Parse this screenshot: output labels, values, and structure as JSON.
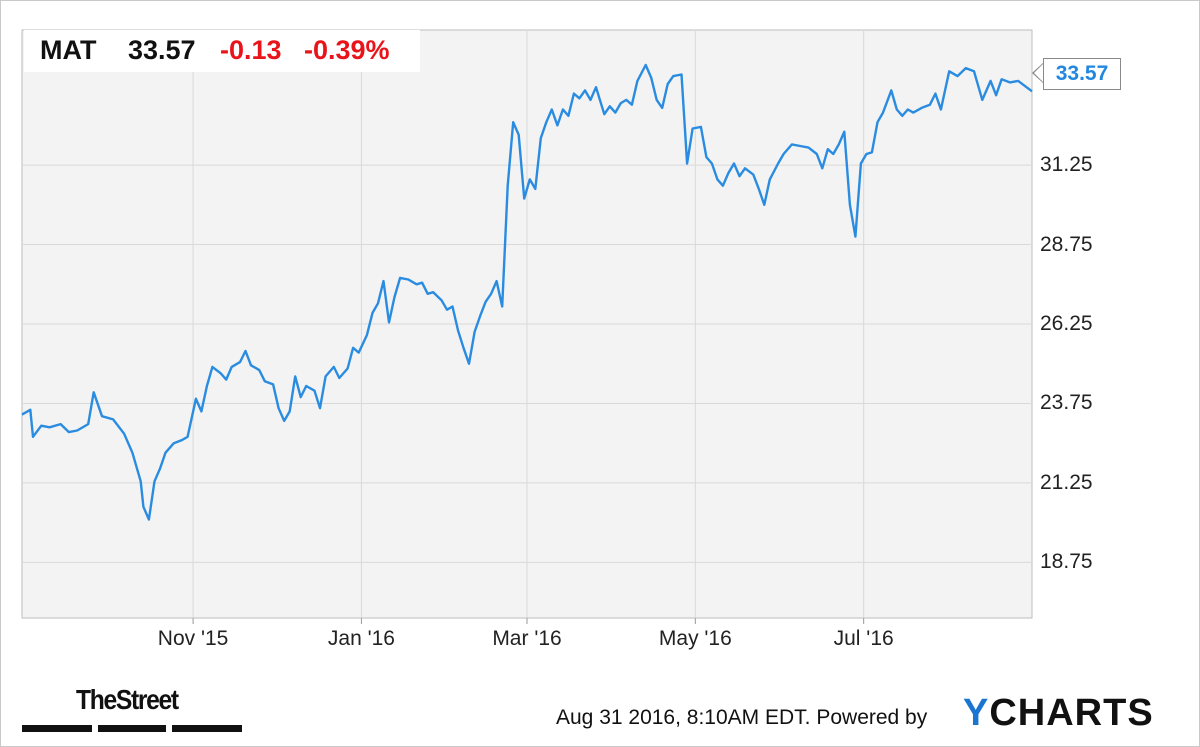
{
  "header": {
    "ticker": "MAT",
    "price": "33.57",
    "change": "-0.13",
    "change_pct": "-0.39%"
  },
  "last_value_label": "33.57",
  "footer": {
    "timestamp": "Aug 31 2016, 8:10AM EDT.",
    "powered_by": "Powered by",
    "brand_y": "Y",
    "brand_rest": "CHARTS",
    "publisher": "TheStreet"
  },
  "colors": {
    "line": "#2a8ce0",
    "negative": "#e8141a",
    "plot_background": "#f3f3f3",
    "grid": "#d9d9d9"
  },
  "chart_data": {
    "type": "line",
    "title": "",
    "xlabel": "",
    "ylabel": "",
    "ylim": [
      17.0,
      35.5
    ],
    "y_ticks": [
      "18.75",
      "21.25",
      "23.75",
      "26.25",
      "28.75",
      "31.25"
    ],
    "y_tick_values": [
      18.75,
      21.25,
      23.75,
      26.25,
      28.75,
      31.25
    ],
    "x_ticks": [
      "Nov '15",
      "Jan '16",
      "Mar '16",
      "May '16",
      "Jul '16"
    ],
    "x_tick_dates": [
      "2015-11-01",
      "2016-01-01",
      "2016-03-01",
      "2016-05-01",
      "2016-07-01"
    ],
    "x_range": [
      "2015-08-31",
      "2016-08-31"
    ],
    "grid": true,
    "series": [
      {
        "values": [
          [
            "2015-08-31",
            23.4
          ],
          [
            "2015-09-03",
            23.55
          ],
          [
            "2015-09-04",
            22.7
          ],
          [
            "2015-09-07",
            23.05
          ],
          [
            "2015-09-10",
            23.0
          ],
          [
            "2015-09-14",
            23.1
          ],
          [
            "2015-09-17",
            22.85
          ],
          [
            "2015-09-20",
            22.9
          ],
          [
            "2015-09-24",
            23.1
          ],
          [
            "2015-09-26",
            24.1
          ],
          [
            "2015-09-29",
            23.35
          ],
          [
            "2015-10-03",
            23.25
          ],
          [
            "2015-10-07",
            22.8
          ],
          [
            "2015-10-10",
            22.2
          ],
          [
            "2015-10-13",
            21.3
          ],
          [
            "2015-10-14",
            20.5
          ],
          [
            "2015-10-16",
            20.1
          ],
          [
            "2015-10-18",
            21.3
          ],
          [
            "2015-10-20",
            21.7
          ],
          [
            "2015-10-22",
            22.2
          ],
          [
            "2015-10-25",
            22.5
          ],
          [
            "2015-10-28",
            22.6
          ],
          [
            "2015-10-30",
            22.7
          ],
          [
            "2015-11-02",
            23.9
          ],
          [
            "2015-11-04",
            23.5
          ],
          [
            "2015-11-06",
            24.3
          ],
          [
            "2015-11-08",
            24.9
          ],
          [
            "2015-11-11",
            24.7
          ],
          [
            "2015-11-13",
            24.5
          ],
          [
            "2015-11-15",
            24.9
          ],
          [
            "2015-11-18",
            25.05
          ],
          [
            "2015-11-20",
            25.4
          ],
          [
            "2015-11-22",
            24.95
          ],
          [
            "2015-11-25",
            24.8
          ],
          [
            "2015-11-27",
            24.45
          ],
          [
            "2015-11-30",
            24.35
          ],
          [
            "2015-12-02",
            23.6
          ],
          [
            "2015-12-04",
            23.2
          ],
          [
            "2015-12-06",
            23.5
          ],
          [
            "2015-12-08",
            24.6
          ],
          [
            "2015-12-10",
            23.95
          ],
          [
            "2015-12-12",
            24.3
          ],
          [
            "2015-12-15",
            24.15
          ],
          [
            "2015-12-17",
            23.6
          ],
          [
            "2015-12-19",
            24.6
          ],
          [
            "2015-12-22",
            24.9
          ],
          [
            "2015-12-24",
            24.55
          ],
          [
            "2015-12-27",
            24.85
          ],
          [
            "2015-12-29",
            25.5
          ],
          [
            "2015-12-31",
            25.35
          ],
          [
            "2016-01-03",
            25.9
          ],
          [
            "2016-01-05",
            26.6
          ],
          [
            "2016-01-07",
            26.9
          ],
          [
            "2016-01-09",
            27.6
          ],
          [
            "2016-01-11",
            26.3
          ],
          [
            "2016-01-13",
            27.1
          ],
          [
            "2016-01-15",
            27.7
          ],
          [
            "2016-01-18",
            27.65
          ],
          [
            "2016-01-21",
            27.5
          ],
          [
            "2016-01-23",
            27.55
          ],
          [
            "2016-01-25",
            27.2
          ],
          [
            "2016-01-27",
            27.25
          ],
          [
            "2016-01-30",
            27.0
          ],
          [
            "2016-02-01",
            26.7
          ],
          [
            "2016-02-03",
            26.8
          ],
          [
            "2016-02-05",
            26.05
          ],
          [
            "2016-02-07",
            25.5
          ],
          [
            "2016-02-09",
            25.0
          ],
          [
            "2016-02-11",
            26.0
          ],
          [
            "2016-02-13",
            26.5
          ],
          [
            "2016-02-15",
            26.95
          ],
          [
            "2016-02-17",
            27.2
          ],
          [
            "2016-02-19",
            27.6
          ],
          [
            "2016-02-21",
            26.8
          ],
          [
            "2016-02-23",
            30.6
          ],
          [
            "2016-02-25",
            32.6
          ],
          [
            "2016-02-27",
            32.2
          ],
          [
            "2016-02-29",
            30.2
          ],
          [
            "2016-03-02",
            30.8
          ],
          [
            "2016-03-04",
            30.5
          ],
          [
            "2016-03-06",
            32.1
          ],
          [
            "2016-03-08",
            32.6
          ],
          [
            "2016-03-10",
            33.0
          ],
          [
            "2016-03-12",
            32.5
          ],
          [
            "2016-03-14",
            33.0
          ],
          [
            "2016-03-16",
            32.8
          ],
          [
            "2016-03-18",
            33.5
          ],
          [
            "2016-03-20",
            33.35
          ],
          [
            "2016-03-22",
            33.6
          ],
          [
            "2016-03-24",
            33.3
          ],
          [
            "2016-03-26",
            33.7
          ],
          [
            "2016-03-29",
            32.85
          ],
          [
            "2016-03-31",
            33.1
          ],
          [
            "2016-04-02",
            32.9
          ],
          [
            "2016-04-04",
            33.2
          ],
          [
            "2016-04-06",
            33.3
          ],
          [
            "2016-04-08",
            33.15
          ],
          [
            "2016-04-10",
            33.9
          ],
          [
            "2016-04-13",
            34.4
          ],
          [
            "2016-04-15",
            34.0
          ],
          [
            "2016-04-17",
            33.3
          ],
          [
            "2016-04-19",
            33.05
          ],
          [
            "2016-04-21",
            33.8
          ],
          [
            "2016-04-23",
            34.05
          ],
          [
            "2016-04-26",
            34.1
          ],
          [
            "2016-04-28",
            31.3
          ],
          [
            "2016-04-30",
            32.4
          ],
          [
            "2016-05-03",
            32.45
          ],
          [
            "2016-05-05",
            31.5
          ],
          [
            "2016-05-07",
            31.3
          ],
          [
            "2016-05-09",
            30.8
          ],
          [
            "2016-05-11",
            30.6
          ],
          [
            "2016-05-13",
            31.0
          ],
          [
            "2016-05-15",
            31.3
          ],
          [
            "2016-05-17",
            30.9
          ],
          [
            "2016-05-19",
            31.15
          ],
          [
            "2016-05-22",
            30.95
          ],
          [
            "2016-05-24",
            30.5
          ],
          [
            "2016-05-26",
            30.0
          ],
          [
            "2016-05-28",
            30.8
          ],
          [
            "2016-05-31",
            31.3
          ],
          [
            "2016-06-02",
            31.6
          ],
          [
            "2016-06-05",
            31.9
          ],
          [
            "2016-06-08",
            31.85
          ],
          [
            "2016-06-11",
            31.8
          ],
          [
            "2016-06-14",
            31.6
          ],
          [
            "2016-06-16",
            31.15
          ],
          [
            "2016-06-18",
            31.75
          ],
          [
            "2016-06-20",
            31.6
          ],
          [
            "2016-06-22",
            31.9
          ],
          [
            "2016-06-24",
            32.3
          ],
          [
            "2016-06-26",
            30.0
          ],
          [
            "2016-06-28",
            29.0
          ],
          [
            "2016-06-30",
            31.3
          ],
          [
            "2016-07-02",
            31.6
          ],
          [
            "2016-07-04",
            31.65
          ],
          [
            "2016-07-06",
            32.6
          ],
          [
            "2016-07-08",
            32.9
          ],
          [
            "2016-07-11",
            33.6
          ],
          [
            "2016-07-13",
            33.0
          ],
          [
            "2016-07-15",
            32.8
          ],
          [
            "2016-07-17",
            33.0
          ],
          [
            "2016-07-19",
            32.9
          ],
          [
            "2016-07-22",
            33.05
          ],
          [
            "2016-07-25",
            33.15
          ],
          [
            "2016-07-27",
            33.5
          ],
          [
            "2016-07-29",
            33.0
          ],
          [
            "2016-08-01",
            34.2
          ],
          [
            "2016-08-04",
            34.05
          ],
          [
            "2016-08-07",
            34.3
          ],
          [
            "2016-08-10",
            34.2
          ],
          [
            "2016-08-13",
            33.3
          ],
          [
            "2016-08-16",
            33.9
          ],
          [
            "2016-08-18",
            33.45
          ],
          [
            "2016-08-20",
            33.95
          ],
          [
            "2016-08-23",
            33.85
          ],
          [
            "2016-08-26",
            33.9
          ],
          [
            "2016-08-31",
            33.57
          ]
        ]
      }
    ]
  }
}
